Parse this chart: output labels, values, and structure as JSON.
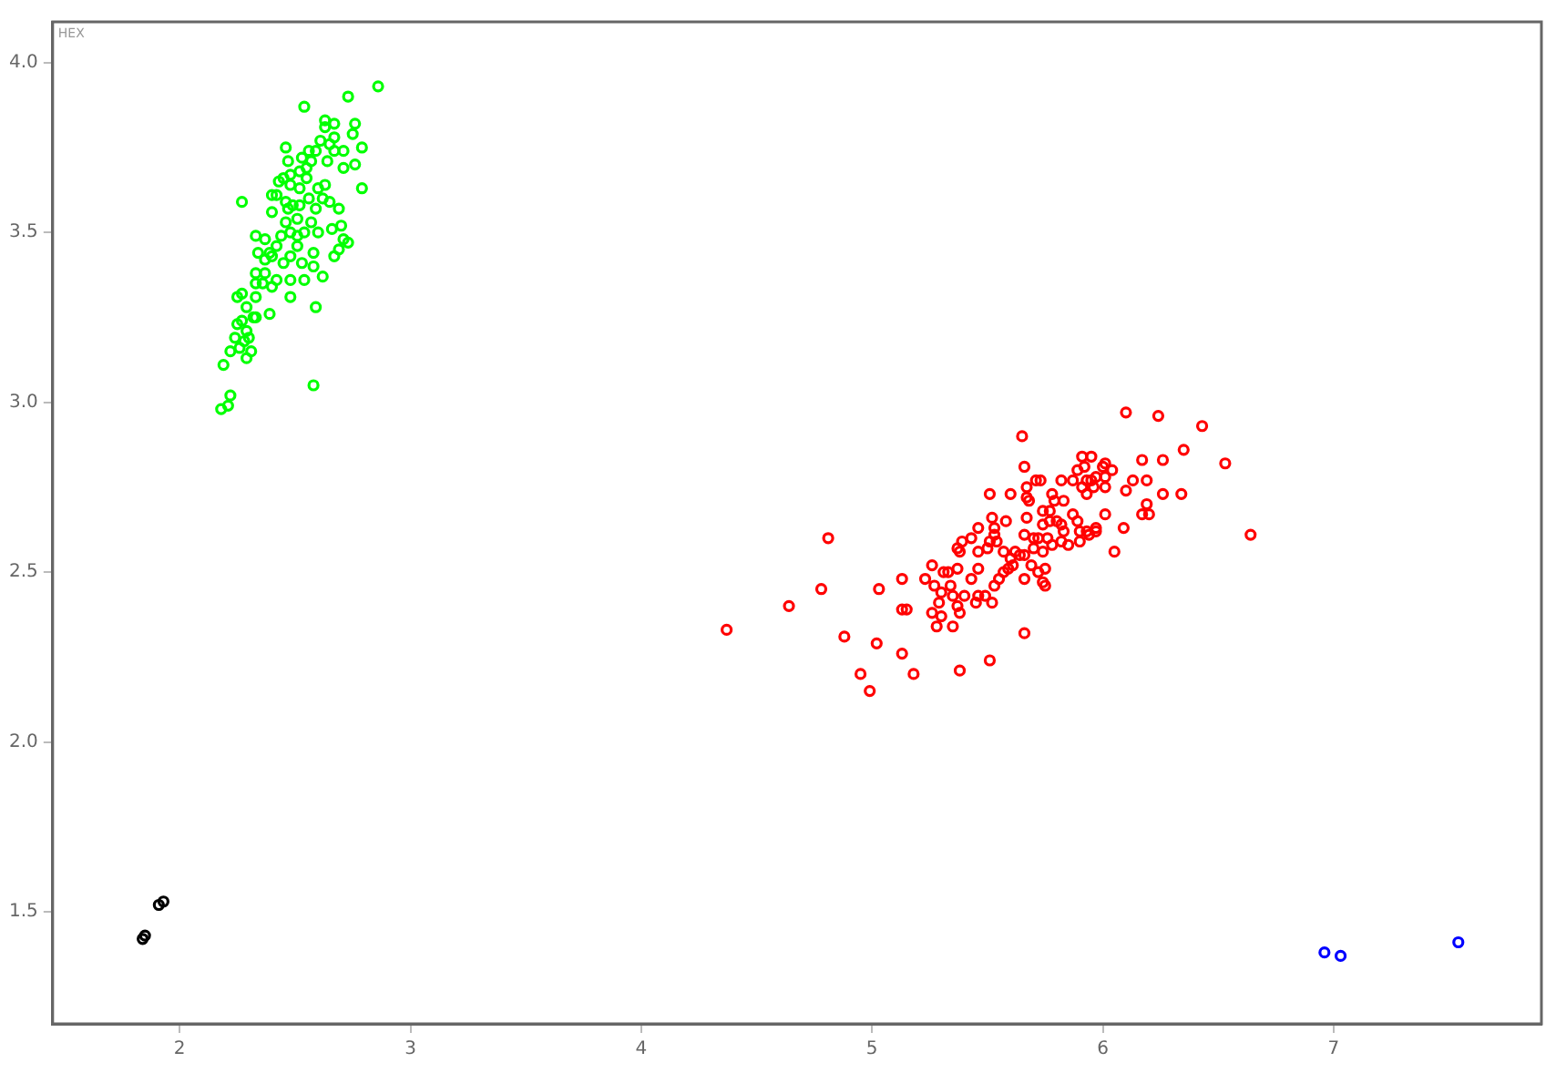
{
  "chart_data": {
    "type": "scatter",
    "annotations": [
      "HEX"
    ],
    "xlim": [
      1.45,
      7.9
    ],
    "ylim": [
      1.17,
      4.12
    ],
    "xticks": [
      2,
      3,
      4,
      5,
      6,
      7
    ],
    "yticks": [
      {
        "value": 1.5,
        "label": "1.5"
      },
      {
        "value": 2,
        "label": "2.0"
      },
      {
        "value": 2.5,
        "label": "2.5"
      },
      {
        "value": 3,
        "label": "3.0"
      },
      {
        "value": 3.5,
        "label": "3.5"
      },
      {
        "value": 4,
        "label": "4.0"
      }
    ],
    "grid": false,
    "legend": false,
    "marker": "circle",
    "series": [
      {
        "color": "#00ff00",
        "x": [
          2.86,
          2.73,
          2.54,
          2.63,
          2.67,
          2.76,
          2.63,
          2.75,
          2.61,
          2.67,
          2.65,
          2.79,
          2.46,
          2.71,
          2.67,
          2.59,
          2.56,
          2.53,
          2.57,
          2.47,
          2.64,
          2.55,
          2.76,
          2.71,
          2.52,
          2.55,
          2.48,
          2.45,
          2.43,
          2.79,
          2.48,
          2.6,
          2.63,
          2.52,
          2.56,
          2.42,
          2.46,
          2.4,
          2.62,
          2.65,
          2.27,
          2.4,
          2.47,
          2.49,
          2.52,
          2.59,
          2.51,
          2.46,
          2.69,
          2.57,
          2.66,
          2.7,
          2.54,
          2.6,
          2.48,
          2.44,
          2.51,
          2.33,
          2.37,
          2.71,
          2.73,
          2.69,
          2.58,
          2.51,
          2.42,
          2.39,
          2.34,
          2.4,
          2.48,
          2.67,
          2.37,
          2.53,
          2.45,
          2.58,
          2.62,
          2.33,
          2.37,
          2.42,
          2.48,
          2.54,
          2.33,
          2.36,
          2.4,
          2.48,
          2.27,
          2.25,
          2.33,
          2.29,
          2.32,
          2.39,
          2.27,
          2.25,
          2.33,
          2.29,
          2.3,
          2.24,
          2.28,
          2.26,
          2.31,
          2.22,
          2.59,
          2.29,
          2.19,
          2.58,
          2.22,
          2.18,
          2.21
        ],
        "values": [
          3.93,
          3.9,
          3.87,
          3.83,
          3.82,
          3.82,
          3.81,
          3.79,
          3.77,
          3.78,
          3.76,
          3.75,
          3.75,
          3.74,
          3.74,
          3.74,
          3.74,
          3.72,
          3.71,
          3.71,
          3.71,
          3.69,
          3.7,
          3.69,
          3.68,
          3.66,
          3.67,
          3.66,
          3.65,
          3.63,
          3.64,
          3.63,
          3.64,
          3.63,
          3.6,
          3.61,
          3.59,
          3.61,
          3.6,
          3.59,
          3.59,
          3.56,
          3.57,
          3.58,
          3.58,
          3.57,
          3.54,
          3.53,
          3.57,
          3.53,
          3.51,
          3.52,
          3.5,
          3.5,
          3.5,
          3.49,
          3.49,
          3.49,
          3.48,
          3.48,
          3.47,
          3.45,
          3.44,
          3.46,
          3.46,
          3.44,
          3.44,
          3.43,
          3.43,
          3.43,
          3.42,
          3.41,
          3.41,
          3.4,
          3.37,
          3.38,
          3.38,
          3.36,
          3.36,
          3.36,
          3.35,
          3.35,
          3.34,
          3.31,
          3.32,
          3.31,
          3.31,
          3.28,
          3.25,
          3.26,
          3.24,
          3.23,
          3.25,
          3.21,
          3.19,
          3.19,
          3.18,
          3.16,
          3.15,
          3.15,
          3.28,
          3.13,
          3.11,
          3.05,
          3.02,
          2.98,
          2.99
        ]
      },
      {
        "color": "#ff0000",
        "x": [
          4.81,
          4.78,
          4.64,
          4.37,
          4.88,
          5.02,
          5.13,
          4.95,
          4.99,
          5.18,
          5.13,
          5.03,
          5.13,
          5.15,
          5.26,
          5.23,
          5.27,
          5.3,
          5.31,
          5.29,
          5.26,
          5.28,
          5.3,
          6.1,
          6.24,
          6.43,
          5.65,
          6.35,
          6.26,
          6.53,
          5.91,
          5.95,
          6.01,
          6.17,
          5.66,
          5.89,
          5.92,
          6.0,
          6.04,
          5.97,
          6.01,
          6.13,
          6.19,
          5.71,
          5.73,
          5.82,
          5.87,
          5.93,
          5.95,
          5.67,
          5.96,
          6.01,
          5.91,
          5.51,
          5.6,
          5.78,
          5.93,
          5.67,
          6.1,
          6.26,
          6.34,
          5.79,
          5.83,
          5.68,
          6.19,
          5.77,
          5.74,
          6.01,
          5.87,
          6.17,
          6.2,
          5.52,
          5.89,
          5.67,
          5.74,
          5.77,
          5.8,
          5.82,
          5.58,
          5.46,
          5.53,
          5.83,
          5.97,
          6.09,
          5.9,
          5.93,
          5.94,
          5.97,
          5.43,
          5.53,
          5.66,
          5.7,
          5.72,
          5.76,
          5.82,
          5.39,
          5.51,
          5.54,
          5.9,
          6.64,
          5.37,
          5.46,
          5.5,
          5.57,
          5.62,
          5.64,
          5.7,
          5.74,
          5.78,
          5.85,
          6.05,
          5.6,
          5.66,
          5.38,
          5.37,
          5.46,
          5.61,
          5.69,
          5.75,
          5.72,
          5.33,
          5.57,
          5.59,
          5.55,
          5.66,
          5.74,
          5.75,
          5.43,
          5.53,
          5.34,
          5.35,
          5.4,
          5.46,
          5.49,
          5.52,
          5.45,
          5.37,
          5.38,
          5.35,
          5.66,
          5.51,
          5.38
        ],
        "values": [
          2.6,
          2.45,
          2.4,
          2.33,
          2.31,
          2.29,
          2.26,
          2.2,
          2.15,
          2.2,
          2.48,
          2.45,
          2.39,
          2.39,
          2.52,
          2.48,
          2.46,
          2.44,
          2.5,
          2.41,
          2.38,
          2.34,
          2.37,
          2.97,
          2.96,
          2.93,
          2.9,
          2.86,
          2.83,
          2.82,
          2.84,
          2.84,
          2.82,
          2.83,
          2.81,
          2.8,
          2.81,
          2.81,
          2.8,
          2.78,
          2.78,
          2.77,
          2.77,
          2.77,
          2.77,
          2.77,
          2.77,
          2.77,
          2.77,
          2.75,
          2.75,
          2.75,
          2.75,
          2.73,
          2.73,
          2.73,
          2.73,
          2.72,
          2.74,
          2.73,
          2.73,
          2.71,
          2.71,
          2.71,
          2.7,
          2.68,
          2.68,
          2.67,
          2.67,
          2.67,
          2.67,
          2.66,
          2.65,
          2.66,
          2.64,
          2.65,
          2.65,
          2.64,
          2.65,
          2.63,
          2.63,
          2.62,
          2.63,
          2.63,
          2.62,
          2.62,
          2.61,
          2.62,
          2.6,
          2.61,
          2.61,
          2.6,
          2.6,
          2.6,
          2.59,
          2.59,
          2.59,
          2.59,
          2.59,
          2.61,
          2.57,
          2.56,
          2.57,
          2.56,
          2.56,
          2.55,
          2.57,
          2.56,
          2.58,
          2.58,
          2.56,
          2.54,
          2.55,
          2.56,
          2.51,
          2.51,
          2.52,
          2.52,
          2.51,
          2.5,
          2.5,
          2.5,
          2.51,
          2.48,
          2.48,
          2.47,
          2.46,
          2.48,
          2.46,
          2.46,
          2.43,
          2.43,
          2.43,
          2.43,
          2.41,
          2.41,
          2.4,
          2.38,
          2.34,
          2.32,
          2.24,
          2.21
        ]
      },
      {
        "color": "#0000ff",
        "x": [
          7.54,
          6.96,
          7.03
        ],
        "values": [
          1.41,
          1.38,
          1.37
        ]
      },
      {
        "color": "#000000",
        "x": [
          1.93,
          1.91,
          1.85,
          1.84
        ],
        "values": [
          1.53,
          1.52,
          1.43,
          1.42
        ]
      }
    ]
  }
}
